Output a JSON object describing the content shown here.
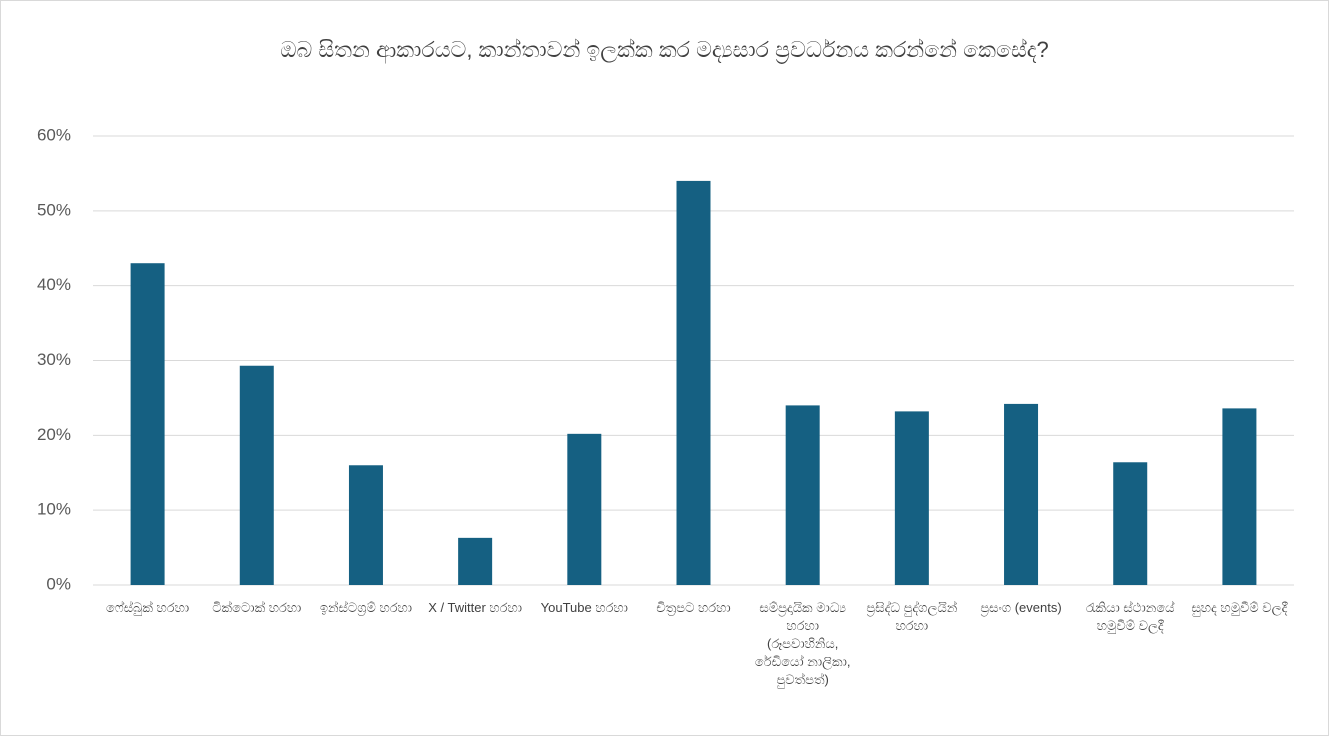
{
  "chart_data": {
    "type": "bar",
    "title": "ඔබ සිතන ආකාරයට, කාන්තාවන් ඉලක්ක කර මද්‍යසාර ප්‍රවර්ධනය කරන්නේ කෙසේද?",
    "categories": [
      "ෆේස්බුක් හරහා",
      "ටික්ටොක් හරහා",
      "ඉන්ස්ටග්‍රම් හරහා",
      "X / Twitter හරහා",
      "YouTube හරහා",
      "චිත්‍රපට හරහා",
      "සම්ප්‍රදායික මාධ්‍ය හරහා (රූපවාහිනිය, රේඩියෝ නාලිකා, පුවත්පත්)",
      "ප්‍රසිද්ධ පුද්ගලයින් හරහා",
      "ප්‍රසංග (events)",
      "රැකියා ස්ථානයේ හමුවීම් වලදී",
      "සුහද හමුවීම් වලදී"
    ],
    "values": [
      43,
      29.3,
      16,
      6.3,
      20.2,
      54,
      24,
      23.2,
      24.2,
      16.4,
      23.6
    ],
    "color": "#156082",
    "ylim": [
      0,
      60
    ],
    "yticks": [
      {
        "value": 0,
        "label": "0%"
      },
      {
        "value": 10,
        "label": "10%"
      },
      {
        "value": 20,
        "label": "20%"
      },
      {
        "value": 30,
        "label": "30%"
      },
      {
        "value": 40,
        "label": "40%"
      },
      {
        "value": 50,
        "label": "50%"
      },
      {
        "value": 60,
        "label": "60%"
      }
    ],
    "grid": true
  }
}
